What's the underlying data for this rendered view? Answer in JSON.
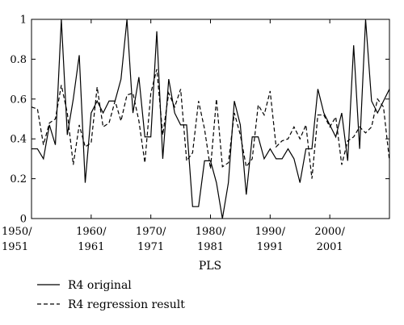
{
  "chart_data": {
    "type": "line",
    "title": "",
    "xlabel": "PLS",
    "ylabel": "",
    "ylim": [
      0,
      1
    ],
    "xlim": [
      1950,
      2010
    ],
    "yticks": [
      "0",
      "0.2",
      "0.4",
      "0.6",
      "0.8",
      "1"
    ],
    "xticks": [
      {
        "x": 1950,
        "line1": "1950/",
        "line2": "1951"
      },
      {
        "x": 1960,
        "line1": "1960/",
        "line2": "1961"
      },
      {
        "x": 1970,
        "line1": "1970/",
        "line2": "1971"
      },
      {
        "x": 1980,
        "line1": "1980/",
        "line2": "1981"
      },
      {
        "x": 1990,
        "line1": "1990/",
        "line2": "1991"
      },
      {
        "x": 2000,
        "line1": "2000/",
        "line2": "2001"
      }
    ],
    "grid": false,
    "legend_position": "bottom-left",
    "x": [
      1950,
      1951,
      1952,
      1953,
      1954,
      1955,
      1956,
      1957,
      1958,
      1959,
      1960,
      1961,
      1962,
      1963,
      1964,
      1965,
      1966,
      1967,
      1968,
      1969,
      1970,
      1971,
      1972,
      1973,
      1974,
      1975,
      1976,
      1977,
      1978,
      1979,
      1980,
      1981,
      1982,
      1983,
      1984,
      1985,
      1986,
      1987,
      1988,
      1989,
      1990,
      1991,
      1992,
      1993,
      1994,
      1995,
      1996,
      1997,
      1998,
      1999,
      2000,
      2001,
      2002,
      2003,
      2004,
      2005,
      2006,
      2007,
      2008,
      2009,
      2010
    ],
    "series": [
      {
        "name": "R4 original",
        "style": "solid",
        "values": [
          0.35,
          0.35,
          0.3,
          0.47,
          0.37,
          1.0,
          0.42,
          0.6,
          0.82,
          0.18,
          0.53,
          0.59,
          0.53,
          0.59,
          0.59,
          0.7,
          1.0,
          0.53,
          0.71,
          0.41,
          0.41,
          0.94,
          0.3,
          0.7,
          0.53,
          0.47,
          0.47,
          0.06,
          0.06,
          0.29,
          0.29,
          0.18,
          0.0,
          0.18,
          0.59,
          0.47,
          0.12,
          0.41,
          0.41,
          0.3,
          0.35,
          0.3,
          0.3,
          0.35,
          0.3,
          0.18,
          0.35,
          0.35,
          0.65,
          0.53,
          0.47,
          0.41,
          0.53,
          0.29,
          0.87,
          0.35,
          1.0,
          0.59,
          0.53,
          0.59,
          0.65
        ]
      },
      {
        "name": "R4 regression result",
        "style": "dashed",
        "values": [
          0.56,
          0.55,
          0.37,
          0.48,
          0.5,
          0.67,
          0.53,
          0.27,
          0.47,
          0.36,
          0.38,
          0.66,
          0.46,
          0.48,
          0.59,
          0.49,
          0.62,
          0.63,
          0.49,
          0.28,
          0.63,
          0.75,
          0.42,
          0.63,
          0.56,
          0.65,
          0.29,
          0.33,
          0.59,
          0.45,
          0.25,
          0.6,
          0.26,
          0.28,
          0.53,
          0.42,
          0.26,
          0.3,
          0.57,
          0.52,
          0.64,
          0.36,
          0.39,
          0.4,
          0.46,
          0.4,
          0.47,
          0.2,
          0.52,
          0.52,
          0.46,
          0.51,
          0.27,
          0.39,
          0.41,
          0.46,
          0.43,
          0.46,
          0.6,
          0.56,
          0.29
        ]
      }
    ]
  }
}
